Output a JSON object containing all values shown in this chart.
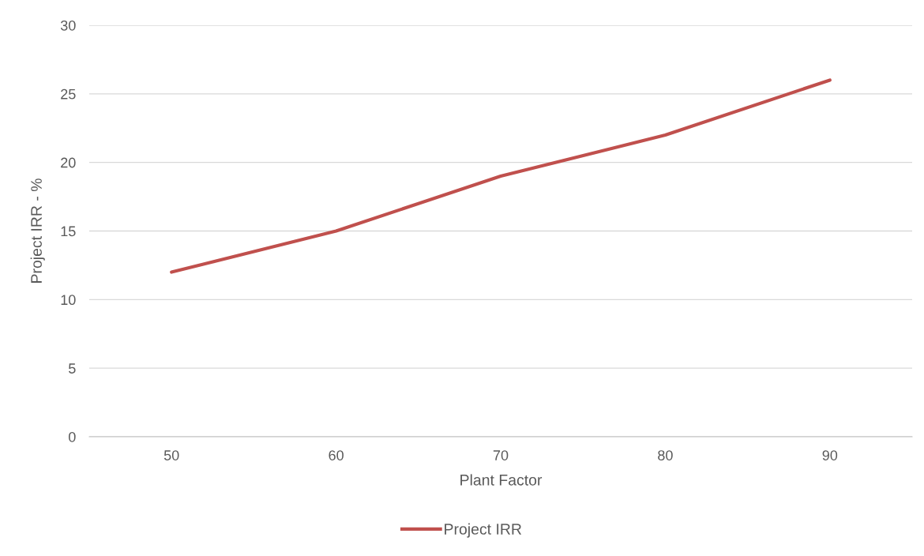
{
  "chart_data": {
    "type": "line",
    "xlabel": "Plant Factor",
    "ylabel": "Project IRR - %",
    "categories": [
      "50",
      "60",
      "70",
      "80",
      "90"
    ],
    "series": [
      {
        "name": "Project IRR",
        "color": "#c0504d",
        "values": [
          12,
          15,
          19,
          22,
          26
        ]
      }
    ],
    "ylim": [
      0,
      30
    ],
    "yticks": [
      0,
      5,
      10,
      15,
      20,
      25,
      30
    ],
    "grid": "y",
    "legend": "bottom",
    "marker": "none",
    "line_style": "solid"
  }
}
